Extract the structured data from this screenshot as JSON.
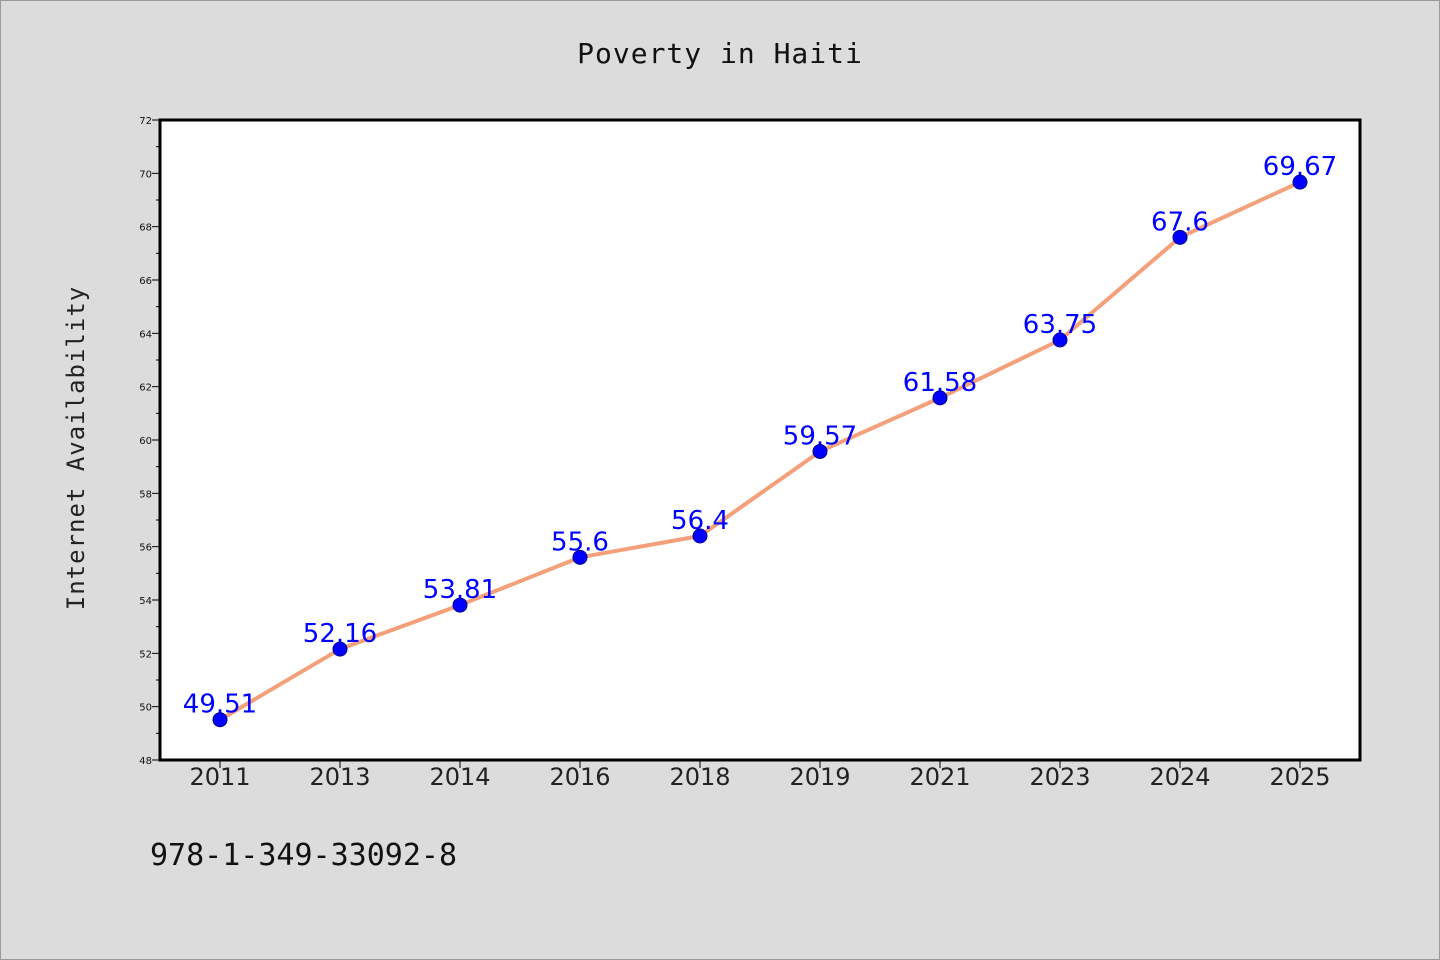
{
  "chart_data": {
    "type": "line",
    "title": "Poverty in Haiti",
    "xlabel": "",
    "ylabel": "Internet Availability",
    "categories": [
      "2011",
      "2013",
      "2014",
      "2016",
      "2018",
      "2019",
      "2021",
      "2023",
      "2024",
      "2025"
    ],
    "values": [
      49.51,
      52.16,
      53.81,
      55.6,
      56.4,
      59.57,
      61.58,
      63.75,
      67.6,
      69.67
    ],
    "data_labels": [
      "49.51",
      "52.16",
      "53.81",
      "55.6",
      "56.4",
      "59.57",
      "61.58",
      "63.75",
      "67.6",
      "69.67"
    ],
    "ylim": [
      48,
      72
    ],
    "yticks": [
      "48",
      "50",
      "52",
      "54",
      "56",
      "58",
      "60",
      "62",
      "64",
      "66",
      "68",
      "70",
      "72"
    ],
    "grid": false,
    "line_color": "#f4a07a",
    "marker_color": "#0000ff"
  },
  "footer": {
    "code": "978-1-349-33092-8"
  }
}
